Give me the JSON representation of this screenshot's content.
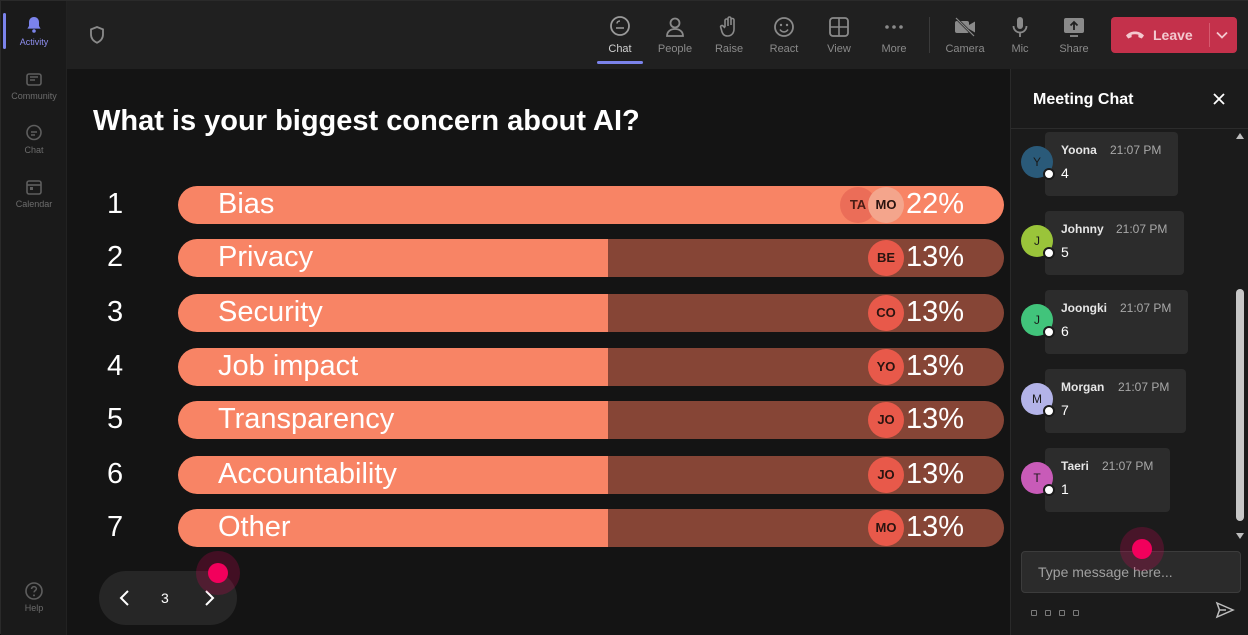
{
  "rail": {
    "items": [
      {
        "label": "Activity",
        "icon": "bell-icon"
      },
      {
        "label": "Community",
        "icon": "community-icon"
      },
      {
        "label": "Chat",
        "icon": "chat-icon"
      },
      {
        "label": "Calendar",
        "icon": "calendar-icon"
      }
    ],
    "help": "Help"
  },
  "topbar": {
    "buttons": [
      {
        "label": "Chat",
        "icon": "chat-icon"
      },
      {
        "label": "People",
        "icon": "people-icon"
      },
      {
        "label": "Raise",
        "icon": "raise-hand-icon"
      },
      {
        "label": "React",
        "icon": "react-icon"
      },
      {
        "label": "View",
        "icon": "view-icon"
      },
      {
        "label": "More",
        "icon": "more-icon"
      },
      {
        "label": "Camera",
        "icon": "camera-off-icon"
      },
      {
        "label": "Mic",
        "icon": "mic-icon"
      },
      {
        "label": "Share",
        "icon": "share-icon"
      }
    ],
    "leave_label": "Leave",
    "accent": "#7b83eb",
    "leave_color": "#c4314b"
  },
  "poll": {
    "question": "What is your biggest concern about AI?",
    "options": [
      {
        "num": "1",
        "label": "Bias",
        "pct": "22%",
        "fraction": 1.0,
        "voters": [
          "TA",
          "MO"
        ]
      },
      {
        "num": "2",
        "label": "Privacy",
        "pct": "13%",
        "fraction": 0.52,
        "voters": [
          "BE"
        ]
      },
      {
        "num": "3",
        "label": "Security",
        "pct": "13%",
        "fraction": 0.52,
        "voters": [
          "CO"
        ]
      },
      {
        "num": "4",
        "label": "Job impact",
        "pct": "13%",
        "fraction": 0.52,
        "voters": [
          "YO"
        ]
      },
      {
        "num": "5",
        "label": "Transparency",
        "pct": "13%",
        "fraction": 0.52,
        "voters": [
          "JO"
        ]
      },
      {
        "num": "6",
        "label": "Accountability",
        "pct": "13%",
        "fraction": 0.52,
        "voters": [
          "JO"
        ]
      },
      {
        "num": "7",
        "label": "Other",
        "pct": "13%",
        "fraction": 0.52,
        "voters": [
          "MO"
        ]
      }
    ],
    "bar_color": "#f88465",
    "track_color": "#864536",
    "pager": {
      "page": "3"
    }
  },
  "chat": {
    "title": "Meeting Chat",
    "messages": [
      {
        "initial": "Y",
        "name": "Yoona",
        "time": "21:07 PM",
        "text": "4",
        "color": "#2a5a79"
      },
      {
        "initial": "J",
        "name": "Johnny",
        "time": "21:07 PM",
        "text": "5",
        "color": "#9ac43a"
      },
      {
        "initial": "J",
        "name": "Joongki",
        "time": "21:07 PM",
        "text": "6",
        "color": "#41c47b"
      },
      {
        "initial": "M",
        "name": "Morgan",
        "time": "21:07 PM",
        "text": "7",
        "color": "#b3b3e8"
      },
      {
        "initial": "T",
        "name": "Taeri",
        "time": "21:07 PM",
        "text": "1",
        "color": "#c85bb8"
      }
    ],
    "input_placeholder": "Type message here..."
  }
}
